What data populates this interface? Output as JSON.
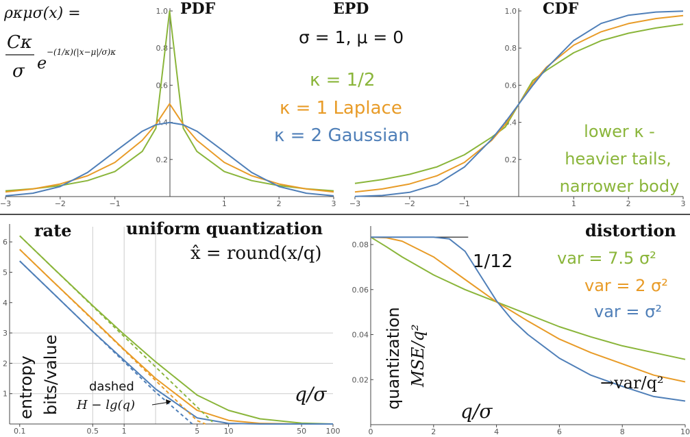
{
  "colors": {
    "green": "#8ab53a",
    "orange": "#e89b27",
    "blue": "#4f7fb8",
    "text": "#111111",
    "axis": "#444444",
    "grid": "#cccccc"
  },
  "labels": {
    "formula_rho": "ρκμσ(x) =",
    "formula_c": "Cκ",
    "formula_sigma": "σ",
    "formula_e": "e",
    "formula_exp": "−(1/κ)(|x−μ|/σ)κ",
    "pdf_title": "PDF",
    "epd_title": "EPD",
    "epd_params": "σ = 1, μ = 0",
    "kappa_half": "κ = 1/2",
    "kappa_one": "κ = 1  Laplace",
    "kappa_two": "κ = 2  Gaussian",
    "cdf_title": "CDF",
    "tails_line1": "lower κ -",
    "tails_line2": "heavier tails,",
    "tails_line3": "narrower body",
    "rate_title": "rate",
    "uq_title": "uniform quantization",
    "uq_formula": "x̂ = round(x/q)",
    "entropy_ylabel1": "entropy",
    "entropy_ylabel2": "bits/value",
    "dashed_label": "dashed",
    "dashed_formula": "H − lg(q)",
    "rate_xlabel": "q/σ",
    "distortion_title": "distortion",
    "one_twelfth": "1/12",
    "var_green": "var = 7.5 σ²",
    "var_orange": "var = 2 σ²",
    "var_blue": "var = σ²",
    "mse_ylabel1": "quantization",
    "mse_ylabel2": "MSE/q²",
    "dist_xlabel": "q/σ",
    "var_over_q2": "→var/q²"
  },
  "chart_data": [
    {
      "type": "line",
      "title": "PDF",
      "xlim": [
        -3,
        3
      ],
      "ylim": [
        0,
        1
      ],
      "x_ticks": [
        -3,
        -2,
        -1,
        1,
        2,
        3
      ],
      "y_ticks": [
        0.2,
        0.4,
        0.6,
        0.8,
        1.0
      ],
      "y_tick_labels": [
        "0.2",
        "0.4",
        "0.6",
        "0.8",
        "1.0"
      ],
      "series": [
        {
          "name": "κ = 1/2",
          "color": "#8ab53a",
          "x": [
            -3,
            -2.5,
            -2,
            -1.5,
            -1,
            -0.5,
            -0.25,
            0,
            0.25,
            0.5,
            1,
            1.5,
            2,
            2.5,
            3
          ],
          "y": [
            0.031,
            0.042,
            0.059,
            0.086,
            0.135,
            0.243,
            0.368,
            1.0,
            0.368,
            0.243,
            0.135,
            0.086,
            0.059,
            0.042,
            0.031
          ]
        },
        {
          "name": "κ = 1  Laplace",
          "color": "#e89b27",
          "x": [
            -3,
            -2.5,
            -2,
            -1.5,
            -1,
            -0.5,
            -0.25,
            0,
            0.25,
            0.5,
            1,
            1.5,
            2,
            2.5,
            3
          ],
          "y": [
            0.025,
            0.041,
            0.068,
            0.112,
            0.184,
            0.303,
            0.389,
            0.5,
            0.389,
            0.303,
            0.184,
            0.112,
            0.068,
            0.041,
            0.025
          ]
        },
        {
          "name": "κ = 2  Gaussian",
          "color": "#4f7fb8",
          "x": [
            -3,
            -2.5,
            -2,
            -1.5,
            -1,
            -0.5,
            -0.25,
            0,
            0.25,
            0.5,
            1,
            1.5,
            2,
            2.5,
            3
          ],
          "y": [
            0.004,
            0.018,
            0.054,
            0.13,
            0.242,
            0.352,
            0.387,
            0.399,
            0.387,
            0.352,
            0.242,
            0.13,
            0.054,
            0.018,
            0.004
          ]
        }
      ]
    },
    {
      "type": "line",
      "title": "CDF",
      "xlim": [
        -3,
        3
      ],
      "ylim": [
        0,
        1
      ],
      "x_ticks": [
        -3,
        -2,
        -1,
        1,
        2,
        3
      ],
      "y_ticks": [
        0.2,
        0.4,
        0.6,
        0.8,
        1.0
      ],
      "y_tick_labels": [
        "0.2",
        "0.4",
        "0.6",
        "0.8",
        "1.0"
      ],
      "series": [
        {
          "name": "κ = 1/2",
          "color": "#8ab53a",
          "x": [
            -3,
            -2.5,
            -2,
            -1.5,
            -1,
            -0.5,
            -0.25,
            0,
            0.25,
            0.5,
            1,
            1.5,
            2,
            2.5,
            3
          ],
          "y": [
            0.071,
            0.092,
            0.12,
            0.16,
            0.225,
            0.32,
            0.375,
            0.5,
            0.625,
            0.68,
            0.775,
            0.84,
            0.88,
            0.908,
            0.929
          ]
        },
        {
          "name": "κ = 1  Laplace",
          "color": "#e89b27",
          "x": [
            -3,
            -2.5,
            -2,
            -1.5,
            -1,
            -0.5,
            -0.25,
            0,
            0.25,
            0.5,
            1,
            1.5,
            2,
            2.5,
            3
          ],
          "y": [
            0.025,
            0.041,
            0.068,
            0.112,
            0.184,
            0.303,
            0.389,
            0.5,
            0.611,
            0.697,
            0.816,
            0.888,
            0.932,
            0.959,
            0.975
          ]
        },
        {
          "name": "κ = 2  Gaussian",
          "color": "#4f7fb8",
          "x": [
            -3,
            -2.5,
            -2,
            -1.5,
            -1,
            -0.5,
            -0.25,
            0,
            0.25,
            0.5,
            1,
            1.5,
            2,
            2.5,
            3
          ],
          "y": [
            0.001,
            0.006,
            0.023,
            0.067,
            0.159,
            0.309,
            0.401,
            0.5,
            0.599,
            0.691,
            0.841,
            0.933,
            0.977,
            0.994,
            0.999
          ]
        }
      ]
    },
    {
      "type": "line",
      "title": "rate",
      "x_scale": "log",
      "xlim": [
        0.08,
        100
      ],
      "ylim": [
        0,
        6.5
      ],
      "x_ticks": [
        0.1,
        0.5,
        1,
        5,
        10,
        50,
        100
      ],
      "x_tick_labels": [
        "0.1",
        "0.5",
        "1",
        "5",
        "10",
        "50",
        "100"
      ],
      "y_ticks": [
        1,
        2,
        3,
        4,
        5,
        6
      ],
      "grid_x": [
        0.5,
        1,
        2
      ],
      "grid_y": [
        1,
        2,
        3
      ],
      "series": [
        {
          "name": "κ = 1/2",
          "style": "solid",
          "color": "#8ab53a",
          "x": [
            0.1,
            0.2,
            0.5,
            1,
            2,
            5,
            10,
            20,
            50,
            100
          ],
          "y": [
            6.2,
            5.2,
            3.9,
            2.95,
            2.05,
            0.95,
            0.45,
            0.17,
            0.03,
            0.0
          ]
        },
        {
          "name": "κ = 1  Laplace",
          "style": "solid",
          "color": "#e89b27",
          "x": [
            0.1,
            0.2,
            0.5,
            1,
            2,
            5,
            10,
            20,
            50,
            100
          ],
          "y": [
            5.75,
            4.75,
            3.45,
            2.45,
            1.5,
            0.45,
            0.12,
            0.02,
            0.0,
            0.0
          ]
        },
        {
          "name": "κ = 2  Gaussian",
          "style": "solid",
          "color": "#4f7fb8",
          "x": [
            0.1,
            0.2,
            0.5,
            1,
            2,
            5,
            10,
            20,
            50,
            100
          ],
          "y": [
            5.37,
            4.37,
            3.05,
            2.1,
            1.15,
            0.2,
            0.02,
            0.0,
            0.0,
            0.0
          ]
        },
        {
          "name": "κ = 1/2",
          "style": "dashed",
          "color": "#8ab53a",
          "x": [
            0.1,
            0.5,
            1,
            2,
            5,
            7
          ],
          "y": [
            6.2,
            3.88,
            2.88,
            1.88,
            0.56,
            0.07
          ]
        },
        {
          "name": "κ = 1  Laplace",
          "style": "dashed",
          "color": "#e89b27",
          "x": [
            0.1,
            0.5,
            1,
            2,
            5,
            6
          ],
          "y": [
            5.75,
            3.43,
            2.43,
            1.43,
            0.11,
            0.0
          ]
        },
        {
          "name": "κ = 2  Gaussian",
          "style": "dashed",
          "color": "#4f7fb8",
          "x": [
            0.1,
            0.5,
            1,
            2,
            4.5
          ],
          "y": [
            5.37,
            3.05,
            2.05,
            1.05,
            0.0
          ]
        }
      ]
    },
    {
      "type": "line",
      "title": "distortion",
      "xlim": [
        0,
        10
      ],
      "ylim": [
        0,
        0.087
      ],
      "x_ticks": [
        0,
        2,
        4,
        6,
        8,
        10
      ],
      "y_ticks": [
        0.02,
        0.04,
        0.06,
        0.08
      ],
      "y_tick_labels": [
        "0.02",
        "0.04",
        "0.06",
        "0.08"
      ],
      "reference_line": {
        "y": 0.0833,
        "x_end": 3.1
      },
      "series": [
        {
          "name": "var = 7.5 σ²",
          "color": "#8ab53a",
          "x": [
            0,
            0.5,
            1,
            2,
            3,
            4,
            5,
            6,
            7,
            8,
            9,
            10
          ],
          "y": [
            0.0833,
            0.079,
            0.0745,
            0.0665,
            0.06,
            0.0545,
            0.049,
            0.0435,
            0.039,
            0.035,
            0.032,
            0.029
          ]
        },
        {
          "name": "var = 2 σ²",
          "color": "#e89b27",
          "x": [
            0,
            0.5,
            1,
            2,
            3,
            4,
            5,
            6,
            7,
            8,
            9,
            10
          ],
          "y": [
            0.0833,
            0.083,
            0.0815,
            0.0745,
            0.0645,
            0.0545,
            0.046,
            0.038,
            0.032,
            0.027,
            0.022,
            0.019
          ]
        },
        {
          "name": "var = σ²",
          "color": "#4f7fb8",
          "x": [
            0,
            1,
            2,
            2.5,
            3,
            3.5,
            4,
            4.5,
            5,
            6,
            7,
            8,
            9,
            10
          ],
          "y": [
            0.0833,
            0.0833,
            0.0833,
            0.0825,
            0.077,
            0.066,
            0.055,
            0.0465,
            0.04,
            0.0295,
            0.022,
            0.017,
            0.0125,
            0.0105
          ]
        }
      ]
    }
  ]
}
